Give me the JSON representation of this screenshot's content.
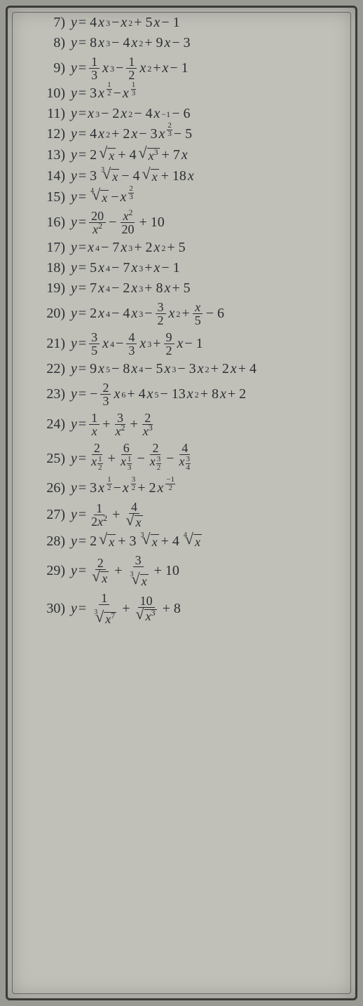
{
  "problems": [
    {
      "n": "7)",
      "eq_html": "<i>y</i> = 4<i>x</i><sup>3</sup> − <i>x</i><sup>2</sup> + 5<i>x</i> − 1"
    },
    {
      "n": "8)",
      "eq_html": "<i>y</i> = 8<i>x</i><sup>3</sup> − 4<i>x</i><sup>2</sup> + 9<i>x</i> − 3"
    },
    {
      "n": "9)",
      "eq_html": "<i>y</i> = <span class='frac'><span class='n'>1</span><span class='d'>3</span></span><i>x</i><sup>3</sup> − <span class='frac'><span class='n'>1</span><span class='d'>2</span></span><i>x</i><sup>2</sup> + <i>x</i> − 1"
    },
    {
      "n": "10)",
      "eq_html": "<i>y</i> = 3<i>x</i><span class='supfrac'><span class='sn'>1</span><span class='sd'>2</span></span> − <i>x</i><span class='supfrac'><span class='sn'>1</span><span class='sd'>3</span></span>"
    },
    {
      "n": "11)",
      "eq_html": "<i>y</i> = <i>x</i><sup>3</sup> − 2<i>x</i><sup>2</sup> − 4<i>x</i><sup>−1</sup> − 6"
    },
    {
      "n": "12)",
      "eq_html": "<i>y</i> = 4<i>x</i><sup>2</sup> + 2<i>x</i> − 3<i>x</i><span class='supfrac'><span class='sn'>2</span><span class='sd'>3</span></span> − 5"
    },
    {
      "n": "13)",
      "eq_html": "<i>y</i> = 2<span class='rt'><span class='rad'>√</span><span class='arg'><i>x</i></span></span> + 4<span class='rt'><span class='rad'>√</span><span class='arg'><i>x</i><sup>3</sup></span></span> + 7<i>x</i>"
    },
    {
      "n": "14)",
      "eq_html": "<i>y</i> = 3<span class='rt'><span class='idx'>3</span><span class='rad'>√</span><span class='arg'><i>x</i></span></span> − 4<span class='rt'><span class='rad'>√</span><span class='arg'><i>x</i></span></span> + 18<i>x</i>"
    },
    {
      "n": "15)",
      "eq_html": "<i>y</i> = <span class='rt'><span class='idx'>4</span><span class='rad'>√</span><span class='arg'><i>x</i></span></span> − <i>x</i><span class='supfrac'><span class='sn'>2</span><span class='sd'>3</span></span>"
    },
    {
      "n": "16)",
      "eq_html": "<i>y</i> = <span class='frac'><span class='n'>20</span><span class='d'><i>x</i><sup>2</sup></span></span> − <span class='frac'><span class='n'><i>x</i><sup>2</sup></span><span class='d'>20</span></span> + 10"
    },
    {
      "n": "17)",
      "eq_html": "<i>y</i> = <i>x</i><sup>4</sup> − 7<i>x</i><sup>3</sup> + 2<i>x</i><sup>2</sup> + 5"
    },
    {
      "n": "18)",
      "eq_html": "<i>y</i> = 5<i>x</i><sup>4</sup> − 7<i>x</i><sup>3</sup> + <i>x</i> − 1"
    },
    {
      "n": "19)",
      "eq_html": "<i>y</i> = 7<i>x</i><sup>4</sup> − 2<i>x</i><sup>3</sup> + 8<i>x</i> + 5"
    },
    {
      "n": "20)",
      "eq_html": "<i>y</i> = 2<i>x</i><sup>4</sup> − 4<i>x</i><sup>3</sup> − <span class='frac'><span class='n'>3</span><span class='d'>2</span></span><i>x</i><sup>2</sup> + <span class='frac'><span class='n'><i>x</i></span><span class='d'>5</span></span> − 6"
    },
    {
      "n": "21)",
      "eq_html": "<i>y</i> = <span class='frac'><span class='n'>3</span><span class='d'>5</span></span><i>x</i><sup>4</sup> − <span class='frac'><span class='n'>4</span><span class='d'>3</span></span><i>x</i><sup>3</sup> + <span class='frac'><span class='n'>9</span><span class='d'>2</span></span><i>x</i> − 1"
    },
    {
      "n": "22)",
      "eq_html": "<i>y</i> = 9<i>x</i><sup>5</sup> − 8<i>x</i><sup>4</sup> − 5<i>x</i><sup>3</sup> − 3<i>x</i><sup>2</sup> + 2<i>x</i> + 4"
    },
    {
      "n": "23)",
      "eq_html": "<i>y</i> = −<span class='frac'><span class='n'>2</span><span class='d'>3</span></span><i>x</i><sup>6</sup> + 4<i>x</i><sup>5</sup> − 13<i>x</i><sup>2</sup> + 8<i>x</i> + 2"
    },
    {
      "n": "24)",
      "eq_html": "<i>y</i> = <span class='frac'><span class='n'>1</span><span class='d'><i>x</i></span></span> + <span class='frac'><span class='n'>3</span><span class='d'><i>x</i><sup>2</sup></span></span> + <span class='frac'><span class='n'>2</span><span class='d'><i>x</i><sup>3</sup></span></span>"
    },
    {
      "n": "25)",
      "eq_html": "<i>y</i> = <span class='frac'><span class='n'>2</span><span class='d'><i>x</i><span class='supfrac'><span class='sn'>1</span><span class='sd'>2</span></span></span></span> + <span class='frac'><span class='n'>6</span><span class='d'><i>x</i><span class='supfrac'><span class='sn'>1</span><span class='sd'>3</span></span></span></span> − <span class='frac'><span class='n'>2</span><span class='d'><i>x</i><span class='supfrac'><span class='sn'>3</span><span class='sd'>2</span></span></span></span> − <span class='frac'><span class='n'>4</span><span class='d'><i>x</i><span class='supfrac'><span class='sn'>3</span><span class='sd'>4</span></span></span></span>"
    },
    {
      "n": "26)",
      "eq_html": "<i>y</i> = 3<i>x</i><span class='supfrac'><span class='sn'>1</span><span class='sd'>2</span></span> − <i>x</i><span class='supfrac'><span class='sn'>3</span><span class='sd'>2</span></span> + 2<i>x</i><span class='supfrac'><span class='sn'>−1</span><span class='sd'>2</span></span>"
    },
    {
      "n": "27)",
      "eq_html": "<i>y</i> = <span class='frac'><span class='n'>1</span><span class='d'>2<i>x</i><sup>2</sup></span></span> + <span class='frac'><span class='n'>4</span><span class='d'><span class='rt'><span class='rad'>√</span><span class='arg'><i>x</i></span></span></span></span>"
    },
    {
      "n": "28)",
      "eq_html": "<i>y</i> = 2<span class='rt'><span class='rad'>√</span><span class='arg'><i>x</i></span></span> + 3<span class='rt'><span class='idx'>3</span><span class='rad'>√</span><span class='arg'><i>x</i></span></span> + 4<span class='rt'><span class='idx'>4</span><span class='rad'>√</span><span class='arg'><i>x</i></span></span>"
    },
    {
      "n": "29)",
      "eq_html": "<i>y</i> = <span class='frac'><span class='n'>2</span><span class='d'><span class='rt'><span class='rad'>√</span><span class='arg'><i>x</i></span></span></span></span> + <span class='frac'><span class='n'>3</span><span class='d'><span class='rt'><span class='idx'>3</span><span class='rad'>√</span><span class='arg'><i>x</i></span></span></span></span> + 10"
    },
    {
      "n": "30)",
      "eq_html": "<i>y</i> = <span class='frac'><span class='n'>1</span><span class='d'><span class='rt'><span class='idx'>3</span><span class='rad'>√</span><span class='arg'><i>x</i><sup>7</sup></span></span></span></span> + <span class='frac'><span class='n'>10</span><span class='d'><span class='rt'><span class='rad'>√</span><span class='arg'><i>x</i><sup>3</sup></span></span></span></span> + 8"
    }
  ]
}
